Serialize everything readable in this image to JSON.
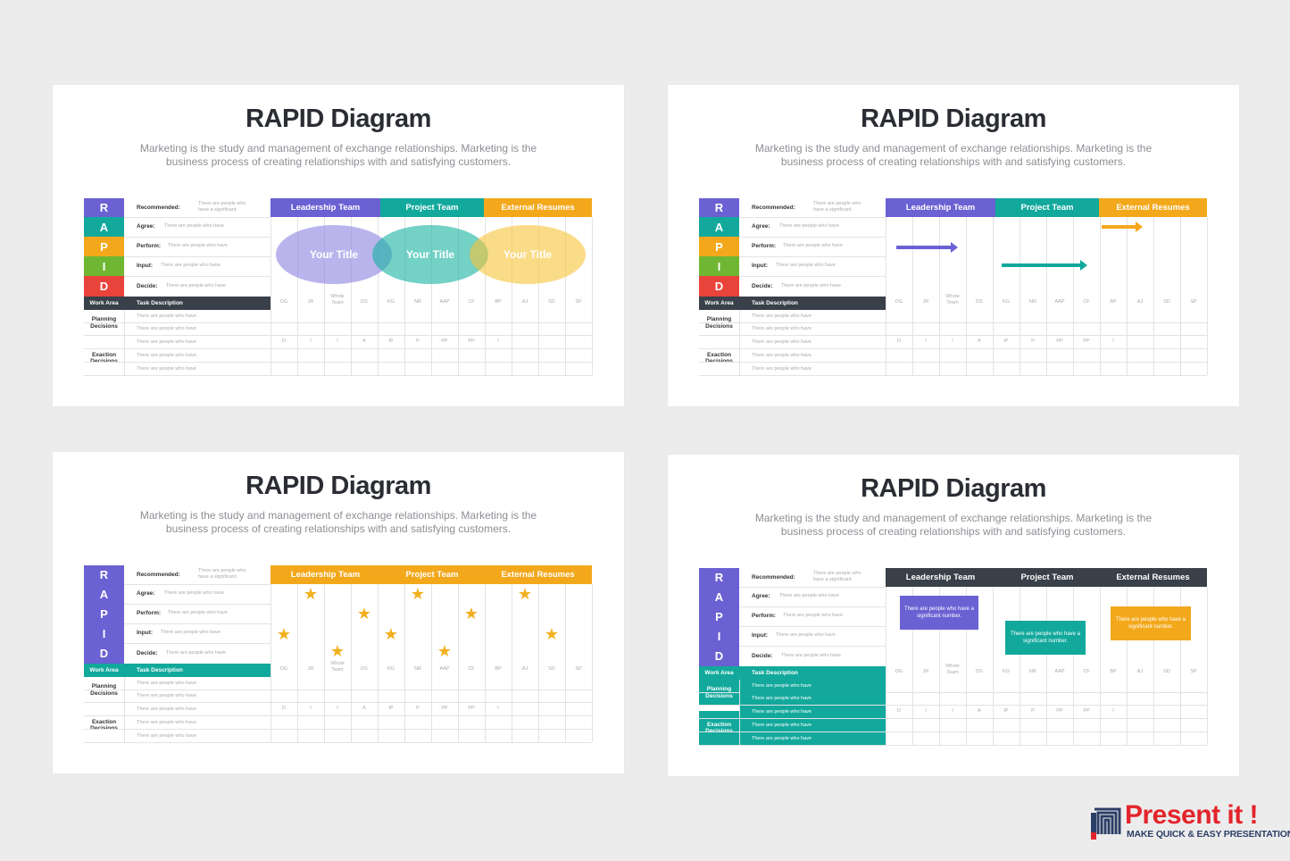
{
  "slides": [
    {
      "title": "RAPID Diagram",
      "subtitle": "Marketing is the study and management of exchange relationships. Marketing is the business process of creating relationships with and satisfying customers.",
      "variant": "venn",
      "rapid_colors": [
        "#6a61d3",
        "#12a99c",
        "#f3a81c",
        "#6fb632",
        "#e9443b"
      ],
      "work_bar_color": "#3a4049",
      "header_colors": [
        "#6a61d3",
        "#12a99c",
        "#f3a81c"
      ],
      "venn_labels": [
        "Your Title",
        "Your Title",
        "Your Title"
      ],
      "venn_colors": [
        "rgba(140,130,225,0.6)",
        "rgba(22,178,160,0.6)",
        "rgba(246,195,55,0.6)"
      ]
    },
    {
      "title": "RAPID Diagram",
      "subtitle": "Marketing is the study and management of exchange relationships. Marketing is the business process of creating relationships with and satisfying customers.",
      "variant": "arrows",
      "rapid_colors": [
        "#6a61d3",
        "#12a99c",
        "#f3a81c",
        "#6fb632",
        "#e9443b"
      ],
      "work_bar_color": "#3a4049",
      "header_colors": [
        "#6a61d3",
        "#12a99c",
        "#f3a81c"
      ],
      "arrow_colors": [
        "#6a61d3",
        "#12a99c",
        "#f3a81c"
      ]
    },
    {
      "title": "RAPID Diagram",
      "subtitle": "Marketing is the study and management of exchange relationships. Marketing is the business process of creating relationships with and satisfying customers.",
      "variant": "stars",
      "rapid_colors": [
        "#6a61d3",
        "#6a61d3",
        "#6a61d3",
        "#6a61d3",
        "#6a61d3"
      ],
      "work_bar_color": "#12a99c",
      "header_colors": [
        "#f3a81c",
        "#f3a81c",
        "#f3a81c"
      ]
    },
    {
      "title": "RAPID Diagram",
      "subtitle": "Marketing is the study and management of exchange relationships. Marketing is the business process of creating relationships with and satisfying customers.",
      "variant": "boxes",
      "rapid_colors": [
        "#6a61d3",
        "#6a61d3",
        "#6a61d3",
        "#6a61d3",
        "#6a61d3"
      ],
      "work_bar_color": "#12a99c",
      "header_colors": [
        "#3a4049",
        "#3a4049",
        "#3a4049"
      ],
      "box_texts": [
        "There are people who have a significant number.",
        "There are people who have a significant number.",
        "There are people who have a significant number."
      ],
      "box_colors": [
        "#6a61d3",
        "#12a99c",
        "#f3a81c"
      ]
    }
  ],
  "table": {
    "rapid_letters": [
      "R",
      "A",
      "P",
      "I",
      "D"
    ],
    "roles": [
      {
        "label": "Recommended:",
        "desc": "There are people who have a significant."
      },
      {
        "label": "Agree:",
        "desc": "There are people who have"
      },
      {
        "label": "Perform:",
        "desc": "There are people who have"
      },
      {
        "label": "Input:",
        "desc": "There are people who have"
      },
      {
        "label": "Decide:",
        "desc": "There are people who have"
      }
    ],
    "work_area": "Work Area",
    "task_description": "Task Description",
    "groups": [
      "Planning Decisions",
      "Exaction Decisions"
    ],
    "task_rows": [
      "There are people who have",
      "There are people who have",
      "There are people who have",
      "There are people who have",
      "There are people who have"
    ],
    "headers": [
      "Leadership Team",
      "Project Team",
      "External Resumes"
    ],
    "columns": [
      "DG",
      "JR",
      "Whole Team",
      "DS",
      "KG",
      "NR",
      "AAP",
      "CF",
      "BP",
      "AJ",
      "SD",
      "SP"
    ],
    "decision_roles": [
      "D",
      "I",
      "I",
      "A",
      "IP",
      "P",
      "PP",
      "PP",
      "I",
      "",
      "",
      ""
    ]
  },
  "logo": {
    "name": "Present it !",
    "tagline": "MAKE QUICK & EASY PRESENTATIONS",
    "color": "#e3242b",
    "tag_color": "#2c3e66"
  }
}
